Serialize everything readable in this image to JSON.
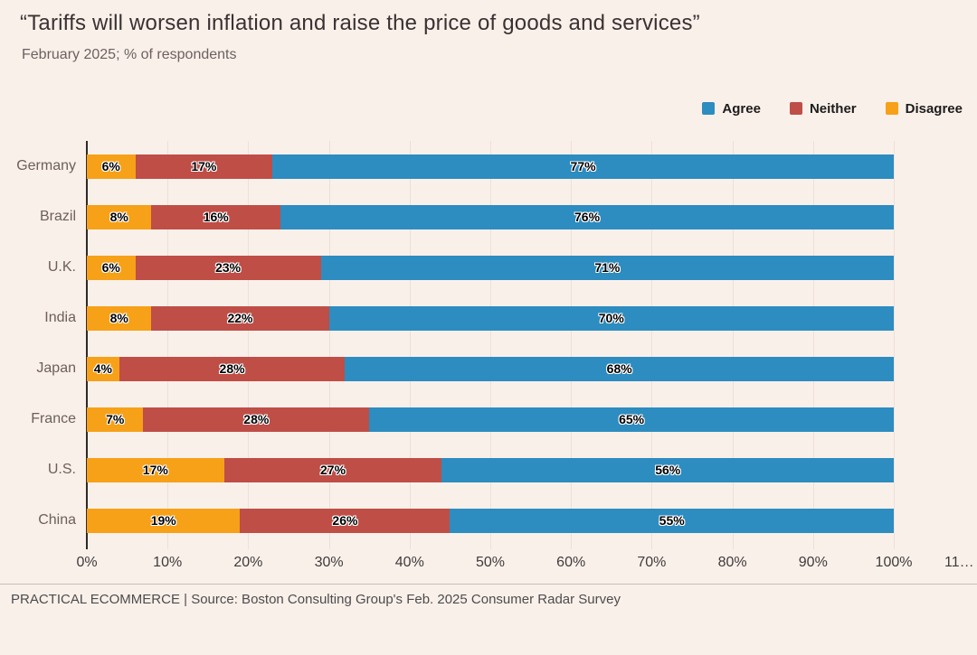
{
  "header": {
    "title": "“Tariffs will worsen inflation and raise the price of goods and services”",
    "subtitle": "February 2025; % of respondents"
  },
  "legend": [
    {
      "label": "Agree",
      "color": "#2d8cc0"
    },
    {
      "label": "Neither",
      "color": "#bf4e47"
    },
    {
      "label": "Disagree",
      "color": "#f6a118"
    }
  ],
  "chart_data": {
    "type": "bar",
    "orientation": "horizontal",
    "stacked": true,
    "title": "“Tariffs will worsen inflation and raise the price of goods and services”",
    "subtitle": "February 2025; % of respondents",
    "categories": [
      "Germany",
      "Brazil",
      "U.K.",
      "India",
      "Japan",
      "France",
      "U.S.",
      "China"
    ],
    "series": [
      {
        "name": "Disagree",
        "color": "#f6a118",
        "values": [
          6,
          8,
          6,
          8,
          4,
          7,
          17,
          19
        ]
      },
      {
        "name": "Neither",
        "color": "#bf4e47",
        "values": [
          17,
          16,
          23,
          22,
          28,
          28,
          27,
          26
        ]
      },
      {
        "name": "Agree",
        "color": "#2d8cc0",
        "values": [
          77,
          76,
          71,
          70,
          68,
          65,
          56,
          55
        ]
      }
    ],
    "value_suffix": "%",
    "xlim": [
      0,
      110
    ],
    "x_ticks": [
      "0%",
      "10%",
      "20%",
      "30%",
      "40%",
      "50%",
      "60%",
      "70%",
      "80%",
      "90%",
      "100%",
      "11…"
    ],
    "grid": true,
    "legend_position": "top-right"
  },
  "footer": {
    "text": "PRACTICAL ECOMMERCE | Source: Boston Consulting Group's Feb. 2025 Consumer Radar Survey"
  }
}
